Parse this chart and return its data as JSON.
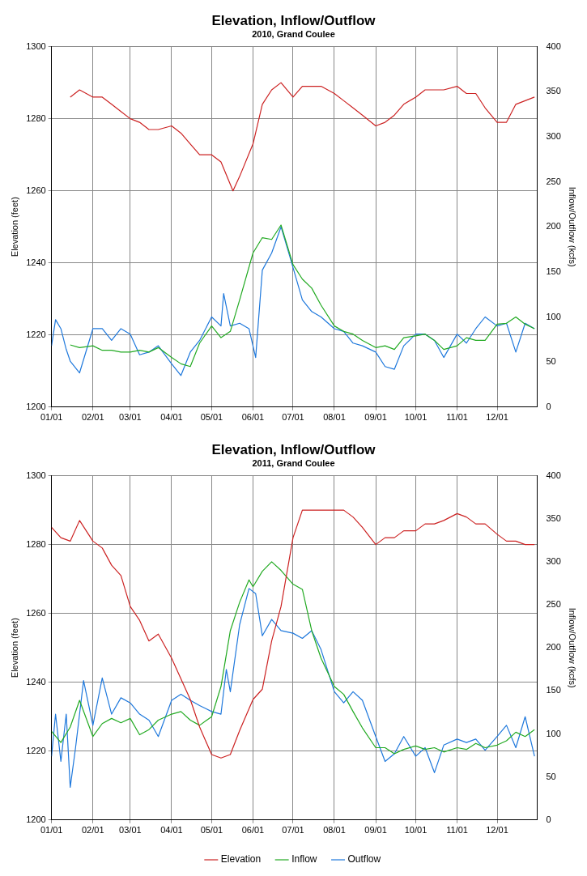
{
  "chart_data": [
    {
      "type": "line",
      "title": "Elevation, Inflow/Outflow",
      "subtitle": "2010, Grand Coulee",
      "ylabel": "Elevation (feet)",
      "y2label": "Inflow/Outflow (kcfs)",
      "marker": "none",
      "grid": true,
      "legend": false,
      "xlim": [
        "2010-01-01",
        "2010-12-31"
      ],
      "xticks": [
        {
          "value": "2010-01-01",
          "label": "01/01"
        },
        {
          "value": "2010-02-01",
          "label": "02/01"
        },
        {
          "value": "2010-03-01",
          "label": "03/01"
        },
        {
          "value": "2010-04-01",
          "label": "04/01"
        },
        {
          "value": "2010-05-01",
          "label": "05/01"
        },
        {
          "value": "2010-06-01",
          "label": "06/01"
        },
        {
          "value": "2010-07-01",
          "label": "07/01"
        },
        {
          "value": "2010-08-01",
          "label": "08/01"
        },
        {
          "value": "2010-09-01",
          "label": "09/01"
        },
        {
          "value": "2010-10-01",
          "label": "10/01"
        },
        {
          "value": "2010-11-01",
          "label": "11/01"
        },
        {
          "value": "2010-12-01",
          "label": "12/01"
        }
      ],
      "ylim": [
        1200,
        1300
      ],
      "yticks": [
        1200,
        1220,
        1240,
        1260,
        1280,
        1300
      ],
      "y2lim": [
        0,
        400
      ],
      "y2ticks": [
        0,
        50,
        100,
        150,
        200,
        250,
        300,
        350,
        400
      ],
      "series": [
        {
          "color": "#cc2222",
          "x": [
            "2010-01-15",
            "2010-01-22",
            "2010-02-01",
            "2010-02-08",
            "2010-02-15",
            "2010-02-22",
            "2010-03-01",
            "2010-03-08",
            "2010-03-15",
            "2010-03-22",
            "2010-04-01",
            "2010-04-08",
            "2010-04-15",
            "2010-04-22",
            "2010-05-01",
            "2010-05-08",
            "2010-05-17",
            "2010-05-22",
            "2010-06-01",
            "2010-06-08",
            "2010-06-15",
            "2010-06-22",
            "2010-07-01",
            "2010-07-08",
            "2010-07-15",
            "2010-07-22",
            "2010-08-01",
            "2010-08-08",
            "2010-08-15",
            "2010-08-22",
            "2010-09-01",
            "2010-09-08",
            "2010-09-15",
            "2010-09-22",
            "2010-10-01",
            "2010-10-08",
            "2010-10-15",
            "2010-10-22",
            "2010-11-01",
            "2010-11-08",
            "2010-11-15",
            "2010-11-22",
            "2010-12-01",
            "2010-12-08",
            "2010-12-15",
            "2010-12-22",
            "2010-12-29"
          ],
          "values": [
            1286,
            1288,
            1286,
            1286,
            1284,
            1282,
            1280,
            1279,
            1277,
            1277,
            1278,
            1276,
            1273,
            1270,
            1270,
            1268,
            1260,
            1264,
            1273,
            1284,
            1288,
            1290,
            1286,
            1289,
            1289,
            1289,
            1287,
            1285,
            1283,
            1281,
            1278,
            1279,
            1281,
            1284,
            1286,
            1288,
            1288,
            1288,
            1289,
            1287,
            1287,
            1283,
            1279,
            1279,
            1284,
            1285,
            1286
          ]
        },
        {
          "color": "#22aa22",
          "axis": "y2",
          "x": [
            "2010-01-15",
            "2010-01-22",
            "2010-02-01",
            "2010-02-08",
            "2010-02-15",
            "2010-02-22",
            "2010-03-01",
            "2010-03-08",
            "2010-03-15",
            "2010-03-22",
            "2010-04-01",
            "2010-04-08",
            "2010-04-15",
            "2010-04-22",
            "2010-05-01",
            "2010-05-08",
            "2010-05-15",
            "2010-05-22",
            "2010-06-01",
            "2010-06-08",
            "2010-06-15",
            "2010-06-22",
            "2010-07-01",
            "2010-07-08",
            "2010-07-15",
            "2010-07-22",
            "2010-08-01",
            "2010-08-08",
            "2010-08-15",
            "2010-08-22",
            "2010-09-01",
            "2010-09-08",
            "2010-09-15",
            "2010-09-22",
            "2010-10-01",
            "2010-10-08",
            "2010-10-15",
            "2010-10-22",
            "2010-11-01",
            "2010-11-08",
            "2010-11-15",
            "2010-11-22",
            "2010-12-01",
            "2010-12-08",
            "2010-12-15",
            "2010-12-22",
            "2010-12-29"
          ],
          "values": [
            69,
            66,
            68,
            63,
            63,
            61,
            61,
            63,
            61,
            66,
            55,
            48,
            45,
            71,
            90,
            77,
            84,
            119,
            171,
            188,
            186,
            202,
            158,
            142,
            132,
            113,
            90,
            84,
            81,
            74,
            66,
            68,
            64,
            77,
            79,
            81,
            74,
            64,
            68,
            77,
            74,
            74,
            92,
            93,
            100,
            92,
            87
          ]
        },
        {
          "color": "#1e78dc",
          "axis": "y2",
          "x": [
            "2010-01-01",
            "2010-01-04",
            "2010-01-08",
            "2010-01-12",
            "2010-01-15",
            "2010-01-22",
            "2010-02-01",
            "2010-02-08",
            "2010-02-15",
            "2010-02-22",
            "2010-03-01",
            "2010-03-08",
            "2010-03-15",
            "2010-03-22",
            "2010-04-01",
            "2010-04-08",
            "2010-04-15",
            "2010-04-22",
            "2010-05-01",
            "2010-05-08",
            "2010-05-10",
            "2010-05-15",
            "2010-05-22",
            "2010-05-29",
            "2010-06-03",
            "2010-06-08",
            "2010-06-15",
            "2010-06-22",
            "2010-06-29",
            "2010-07-08",
            "2010-07-15",
            "2010-07-22",
            "2010-08-01",
            "2010-08-08",
            "2010-08-15",
            "2010-08-22",
            "2010-09-01",
            "2010-09-08",
            "2010-09-15",
            "2010-09-22",
            "2010-10-01",
            "2010-10-08",
            "2010-10-15",
            "2010-10-22",
            "2010-11-01",
            "2010-11-08",
            "2010-11-15",
            "2010-11-22",
            "2010-12-01",
            "2010-12-08",
            "2010-12-15",
            "2010-12-22",
            "2010-12-29"
          ],
          "values": [
            68,
            97,
            87,
            64,
            51,
            38,
            87,
            87,
            74,
            87,
            81,
            58,
            61,
            68,
            48,
            35,
            61,
            74,
            100,
            90,
            126,
            90,
            93,
            87,
            55,
            152,
            171,
            200,
            165,
            119,
            106,
            100,
            87,
            84,
            71,
            68,
            61,
            45,
            42,
            68,
            81,
            81,
            74,
            55,
            81,
            71,
            87,
            100,
            90,
            93,
            61,
            93,
            87
          ]
        }
      ]
    },
    {
      "type": "line",
      "title": "Elevation, Inflow/Outflow",
      "subtitle": "2011, Grand Coulee",
      "ylabel": "Elevation (feet)",
      "y2label": "Inflow/Outflow (kcfs)",
      "marker": "none",
      "grid": true,
      "legend": "bottom",
      "xlim": [
        "2011-01-01",
        "2011-12-31"
      ],
      "xticks": [
        {
          "value": "2011-01-01",
          "label": "01/01"
        },
        {
          "value": "2011-02-01",
          "label": "02/01"
        },
        {
          "value": "2011-03-01",
          "label": "03/01"
        },
        {
          "value": "2011-04-01",
          "label": "04/01"
        },
        {
          "value": "2011-05-01",
          "label": "05/01"
        },
        {
          "value": "2011-06-01",
          "label": "06/01"
        },
        {
          "value": "2011-07-01",
          "label": "07/01"
        },
        {
          "value": "2011-08-01",
          "label": "08/01"
        },
        {
          "value": "2011-09-01",
          "label": "09/01"
        },
        {
          "value": "2011-10-01",
          "label": "10/01"
        },
        {
          "value": "2011-11-01",
          "label": "11/01"
        },
        {
          "value": "2011-12-01",
          "label": "12/01"
        }
      ],
      "ylim": [
        1200,
        1300
      ],
      "yticks": [
        1200,
        1220,
        1240,
        1260,
        1280,
        1300
      ],
      "y2lim": [
        0,
        400
      ],
      "y2ticks": [
        0,
        50,
        100,
        150,
        200,
        250,
        300,
        350,
        400
      ],
      "series": [
        {
          "name": "Elevation",
          "color": "#cc2222",
          "x": [
            "2011-01-01",
            "2011-01-08",
            "2011-01-15",
            "2011-01-22",
            "2011-02-01",
            "2011-02-08",
            "2011-02-15",
            "2011-02-22",
            "2011-03-01",
            "2011-03-08",
            "2011-03-15",
            "2011-03-22",
            "2011-04-01",
            "2011-04-08",
            "2011-04-15",
            "2011-04-22",
            "2011-05-01",
            "2011-05-08",
            "2011-05-15",
            "2011-05-22",
            "2011-06-01",
            "2011-06-08",
            "2011-06-15",
            "2011-06-22",
            "2011-07-01",
            "2011-07-08",
            "2011-07-15",
            "2011-07-22",
            "2011-08-01",
            "2011-08-08",
            "2011-08-15",
            "2011-08-22",
            "2011-09-01",
            "2011-09-08",
            "2011-09-15",
            "2011-09-22",
            "2011-10-01",
            "2011-10-08",
            "2011-10-15",
            "2011-10-22",
            "2011-11-01",
            "2011-11-08",
            "2011-11-15",
            "2011-11-22",
            "2011-12-01",
            "2011-12-08",
            "2011-12-15",
            "2011-12-22",
            "2011-12-29"
          ],
          "values": [
            1285,
            1282,
            1281,
            1287,
            1281,
            1279,
            1274,
            1271,
            1262,
            1258,
            1252,
            1254,
            1247,
            1241,
            1235,
            1227,
            1219,
            1218,
            1219,
            1226,
            1235,
            1238,
            1252,
            1262,
            1282,
            1290,
            1290,
            1290,
            1290,
            1290,
            1288,
            1285,
            1280,
            1282,
            1282,
            1284,
            1284,
            1286,
            1286,
            1287,
            1289,
            1288,
            1286,
            1286,
            1283,
            1281,
            1281,
            1280,
            1280
          ]
        },
        {
          "name": "Inflow",
          "color": "#22aa22",
          "axis": "y2",
          "x": [
            "2011-01-01",
            "2011-01-08",
            "2011-01-15",
            "2011-01-22",
            "2011-02-01",
            "2011-02-08",
            "2011-02-15",
            "2011-02-22",
            "2011-03-01",
            "2011-03-08",
            "2011-03-15",
            "2011-03-22",
            "2011-04-01",
            "2011-04-08",
            "2011-04-15",
            "2011-04-22",
            "2011-05-01",
            "2011-05-08",
            "2011-05-15",
            "2011-05-22",
            "2011-05-29",
            "2011-06-01",
            "2011-06-08",
            "2011-06-15",
            "2011-06-22",
            "2011-07-01",
            "2011-07-08",
            "2011-07-15",
            "2011-07-22",
            "2011-08-01",
            "2011-08-08",
            "2011-08-15",
            "2011-08-22",
            "2011-09-01",
            "2011-09-08",
            "2011-09-15",
            "2011-09-22",
            "2011-10-01",
            "2011-10-08",
            "2011-10-15",
            "2011-10-22",
            "2011-11-01",
            "2011-11-08",
            "2011-11-15",
            "2011-11-22",
            "2011-12-01",
            "2011-12-08",
            "2011-12-15",
            "2011-12-22",
            "2011-12-29"
          ],
          "values": [
            103,
            90,
            108,
            139,
            97,
            112,
            118,
            113,
            118,
            99,
            105,
            116,
            123,
            126,
            116,
            110,
            120,
            155,
            220,
            253,
            279,
            271,
            289,
            300,
            290,
            274,
            268,
            220,
            188,
            155,
            146,
            126,
            107,
            84,
            84,
            77,
            82,
            86,
            82,
            84,
            79,
            84,
            82,
            89,
            84,
            87,
            92,
            102,
            97,
            105
          ]
        },
        {
          "name": "Outflow",
          "color": "#1e78dc",
          "axis": "y2",
          "x": [
            "2011-01-01",
            "2011-01-04",
            "2011-01-08",
            "2011-01-12",
            "2011-01-15",
            "2011-01-19",
            "2011-01-22",
            "2011-01-25",
            "2011-02-01",
            "2011-02-08",
            "2011-02-15",
            "2011-02-22",
            "2011-03-01",
            "2011-03-08",
            "2011-03-15",
            "2011-03-22",
            "2011-04-01",
            "2011-04-08",
            "2011-04-15",
            "2011-04-22",
            "2011-05-01",
            "2011-05-08",
            "2011-05-12",
            "2011-05-15",
            "2011-05-22",
            "2011-05-29",
            "2011-06-03",
            "2011-06-08",
            "2011-06-15",
            "2011-06-22",
            "2011-07-01",
            "2011-07-08",
            "2011-07-15",
            "2011-07-22",
            "2011-08-01",
            "2011-08-08",
            "2011-08-15",
            "2011-08-22",
            "2011-09-01",
            "2011-09-08",
            "2011-09-15",
            "2011-09-22",
            "2011-10-01",
            "2011-10-08",
            "2011-10-15",
            "2011-10-22",
            "2011-11-01",
            "2011-11-08",
            "2011-11-15",
            "2011-11-22",
            "2011-12-01",
            "2011-12-08",
            "2011-12-15",
            "2011-12-22",
            "2011-12-29"
          ],
          "values": [
            74,
            123,
            68,
            123,
            38,
            84,
            123,
            162,
            110,
            165,
            123,
            142,
            136,
            123,
            116,
            97,
            139,
            146,
            139,
            133,
            126,
            123,
            175,
            149,
            227,
            269,
            263,
            214,
            233,
            220,
            217,
            211,
            220,
            198,
            149,
            136,
            149,
            139,
            97,
            68,
            77,
            97,
            74,
            84,
            55,
            87,
            94,
            90,
            94,
            81,
            97,
            110,
            84,
            120,
            74
          ]
        }
      ]
    }
  ]
}
